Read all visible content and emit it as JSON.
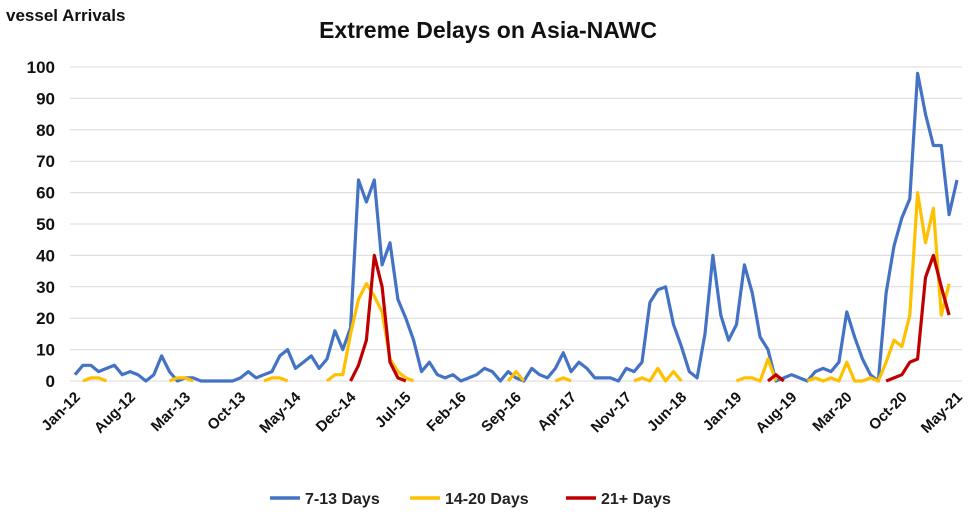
{
  "corner_label": "vessel Arrivals",
  "chart_data": {
    "type": "line",
    "title": "Extreme Delays on Asia-NAWC",
    "xlabel": "",
    "ylabel": "",
    "ylim": [
      0,
      100
    ],
    "yticks": [
      0,
      10,
      20,
      30,
      40,
      50,
      60,
      70,
      80,
      90,
      100
    ],
    "grid": true,
    "legend_position": "bottom",
    "x_start": "Jan-12",
    "x_end": "May-21",
    "x_tick_step_months": 7,
    "x_tick_labels": [
      "Jan-12",
      "Aug-12",
      "Mar-13",
      "Oct-13",
      "May-14",
      "Dec-14",
      "Jul-15",
      "Feb-16",
      "Sep-16",
      "Apr-17",
      "Nov-17",
      "Jun-18",
      "Jan-19",
      "Aug-19",
      "Mar-20",
      "Oct-20",
      "May-21"
    ],
    "series": [
      {
        "name": "7-13 Days",
        "color": "#4472C4",
        "values": [
          2,
          5,
          5,
          3,
          4,
          5,
          2,
          3,
          2,
          0,
          2,
          8,
          3,
          0,
          1,
          1,
          0,
          0,
          0,
          0,
          0,
          1,
          3,
          1,
          2,
          3,
          8,
          10,
          4,
          6,
          8,
          4,
          7,
          16,
          10,
          17,
          64,
          57,
          64,
          37,
          44,
          26,
          20,
          13,
          3,
          6,
          2,
          1,
          2,
          0,
          1,
          2,
          4,
          3,
          0,
          3,
          1,
          0,
          4,
          2,
          1,
          4,
          9,
          3,
          6,
          4,
          1,
          1,
          1,
          0,
          4,
          3,
          6,
          25,
          29,
          30,
          18,
          11,
          3,
          1,
          15,
          40,
          21,
          13,
          18,
          37,
          28,
          14,
          10,
          0,
          1,
          2,
          1,
          0,
          3,
          4,
          3,
          6,
          22,
          14,
          7,
          2,
          0,
          28,
          43,
          52,
          58,
          98,
          85,
          75,
          75,
          53,
          64
        ]
      },
      {
        "name": "14-20 Days",
        "color": "#FFC000",
        "values": [
          null,
          0,
          1,
          1,
          0,
          null,
          null,
          null,
          null,
          null,
          null,
          null,
          0,
          1,
          1,
          0,
          null,
          null,
          null,
          null,
          null,
          null,
          null,
          null,
          0,
          1,
          1,
          0,
          null,
          null,
          null,
          null,
          0,
          2,
          2,
          15,
          26,
          31,
          27,
          22,
          7,
          3,
          1,
          0,
          null,
          null,
          null,
          null,
          null,
          null,
          null,
          null,
          null,
          null,
          null,
          0,
          3,
          0,
          null,
          null,
          null,
          0,
          1,
          0,
          null,
          null,
          null,
          null,
          null,
          null,
          null,
          0,
          1,
          0,
          4,
          0,
          3,
          0,
          null,
          null,
          null,
          null,
          null,
          null,
          0,
          1,
          1,
          0,
          7,
          0,
          null,
          null,
          null,
          0,
          1,
          0,
          1,
          0,
          6,
          0,
          0,
          1,
          0,
          6,
          13,
          11,
          21,
          60,
          44,
          55,
          21,
          31,
          null
        ]
      },
      {
        "name": "21+ Days",
        "color": "#C00000",
        "values": [
          null,
          null,
          null,
          null,
          null,
          null,
          null,
          null,
          null,
          null,
          null,
          null,
          null,
          null,
          null,
          null,
          null,
          null,
          null,
          null,
          null,
          null,
          null,
          null,
          null,
          null,
          null,
          null,
          null,
          null,
          null,
          null,
          null,
          null,
          null,
          0,
          5,
          13,
          40,
          30,
          6,
          1,
          0,
          null,
          null,
          null,
          null,
          null,
          null,
          null,
          null,
          null,
          null,
          null,
          null,
          null,
          null,
          null,
          null,
          null,
          null,
          null,
          null,
          null,
          null,
          null,
          null,
          null,
          null,
          null,
          null,
          null,
          null,
          null,
          null,
          null,
          null,
          null,
          null,
          null,
          null,
          null,
          null,
          null,
          null,
          null,
          null,
          null,
          0,
          2,
          0,
          null,
          null,
          null,
          null,
          null,
          null,
          null,
          null,
          null,
          null,
          null,
          null,
          0,
          1,
          2,
          6,
          7,
          33,
          40,
          30,
          21,
          null
        ]
      }
    ]
  }
}
